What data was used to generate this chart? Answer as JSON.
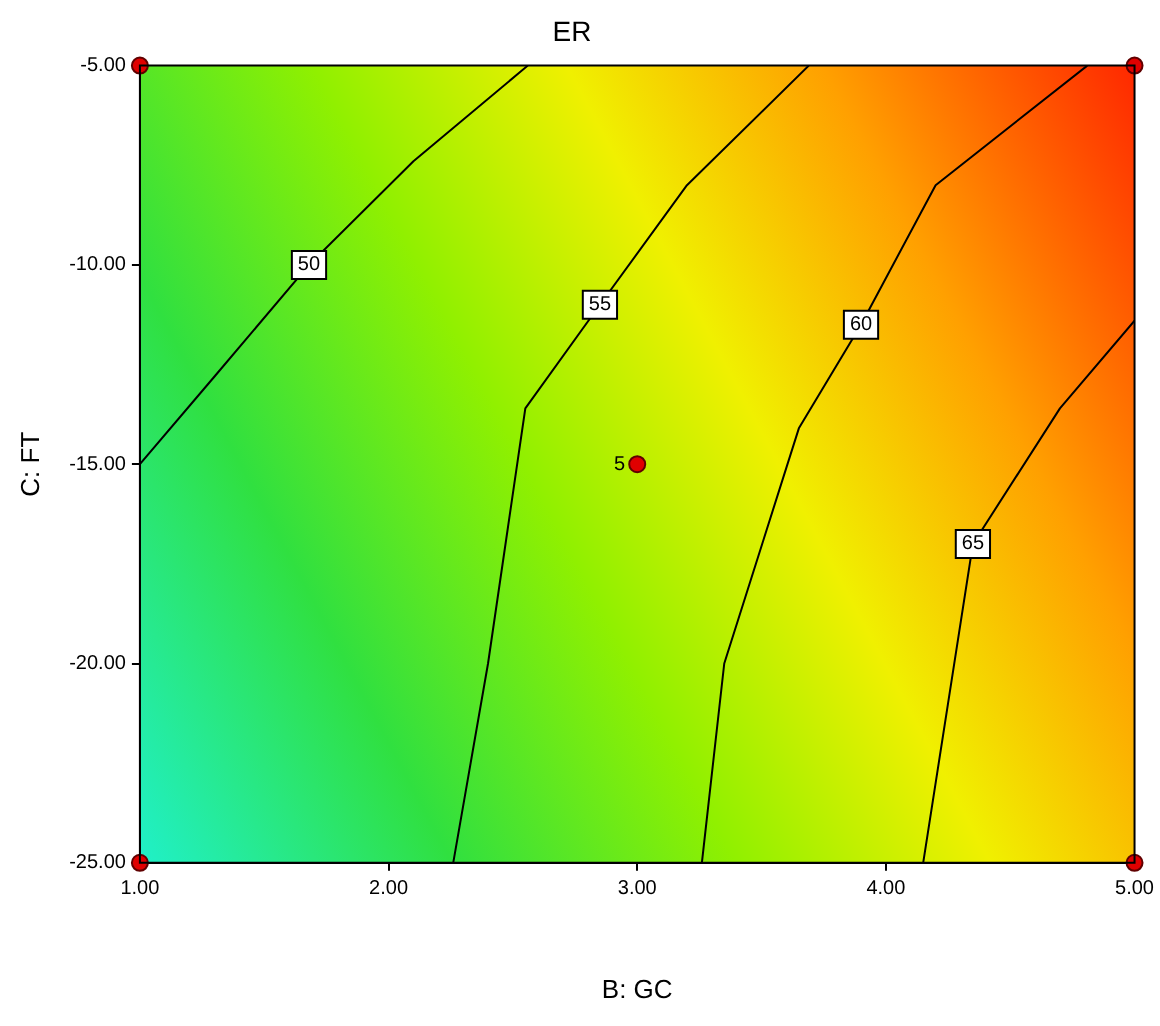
{
  "chart_data": {
    "type": "line",
    "title": "ER",
    "xlabel": "B: GC",
    "ylabel": "C: FT",
    "xlim": [
      1,
      5
    ],
    "ylim": [
      -25,
      -5
    ],
    "xticks": [
      {
        "value": 1,
        "label": "1.00"
      },
      {
        "value": 2,
        "label": "2.00"
      },
      {
        "value": 3,
        "label": "3.00"
      },
      {
        "value": 4,
        "label": "4.00"
      },
      {
        "value": 5,
        "label": "5.00"
      }
    ],
    "yticks": [
      {
        "value": -25,
        "label": "-25.00"
      },
      {
        "value": -20,
        "label": "-20.00"
      },
      {
        "value": -15,
        "label": "-15.00"
      },
      {
        "value": -10,
        "label": "-10.00"
      },
      {
        "value": -5,
        "label": "-5.00"
      }
    ],
    "series": [
      {
        "name": "50",
        "color": "#000000",
        "marker": "none",
        "x": [
          1.0,
          1.3,
          1.68,
          2.1,
          2.56
        ],
        "values": [
          -15.0,
          -12.8,
          -10.0,
          -7.4,
          -5.0
        ]
      },
      {
        "name": "55",
        "color": "#000000",
        "marker": "none",
        "x": [
          2.26,
          2.4,
          2.55,
          2.85,
          3.2,
          3.69
        ],
        "values": [
          -25,
          -20,
          -13.6,
          -11,
          -8,
          -5
        ]
      },
      {
        "name": "60",
        "color": "#000000",
        "marker": "none",
        "x": [
          3.26,
          3.35,
          3.65,
          3.9,
          4.2,
          4.81
        ],
        "values": [
          -25,
          -20,
          -14.1,
          -11.5,
          -8,
          -5
        ]
      },
      {
        "name": "65",
        "color": "#000000",
        "marker": "none",
        "x": [
          4.15,
          4.25,
          4.35,
          4.7,
          5.0
        ],
        "values": [
          -25,
          -21,
          -17.0,
          -13.6,
          -11.4
        ]
      },
      {
        "type": "scatter",
        "color": "#e00000",
        "marker": "circle",
        "x": [
          1,
          5,
          1,
          5,
          3
        ],
        "values": [
          -5,
          -5,
          -25,
          -25,
          -15
        ]
      }
    ],
    "annotations": [
      {
        "text": "5",
        "x": 3,
        "y": -15
      }
    ],
    "grid": false,
    "legend": false,
    "line_style": "solid"
  }
}
